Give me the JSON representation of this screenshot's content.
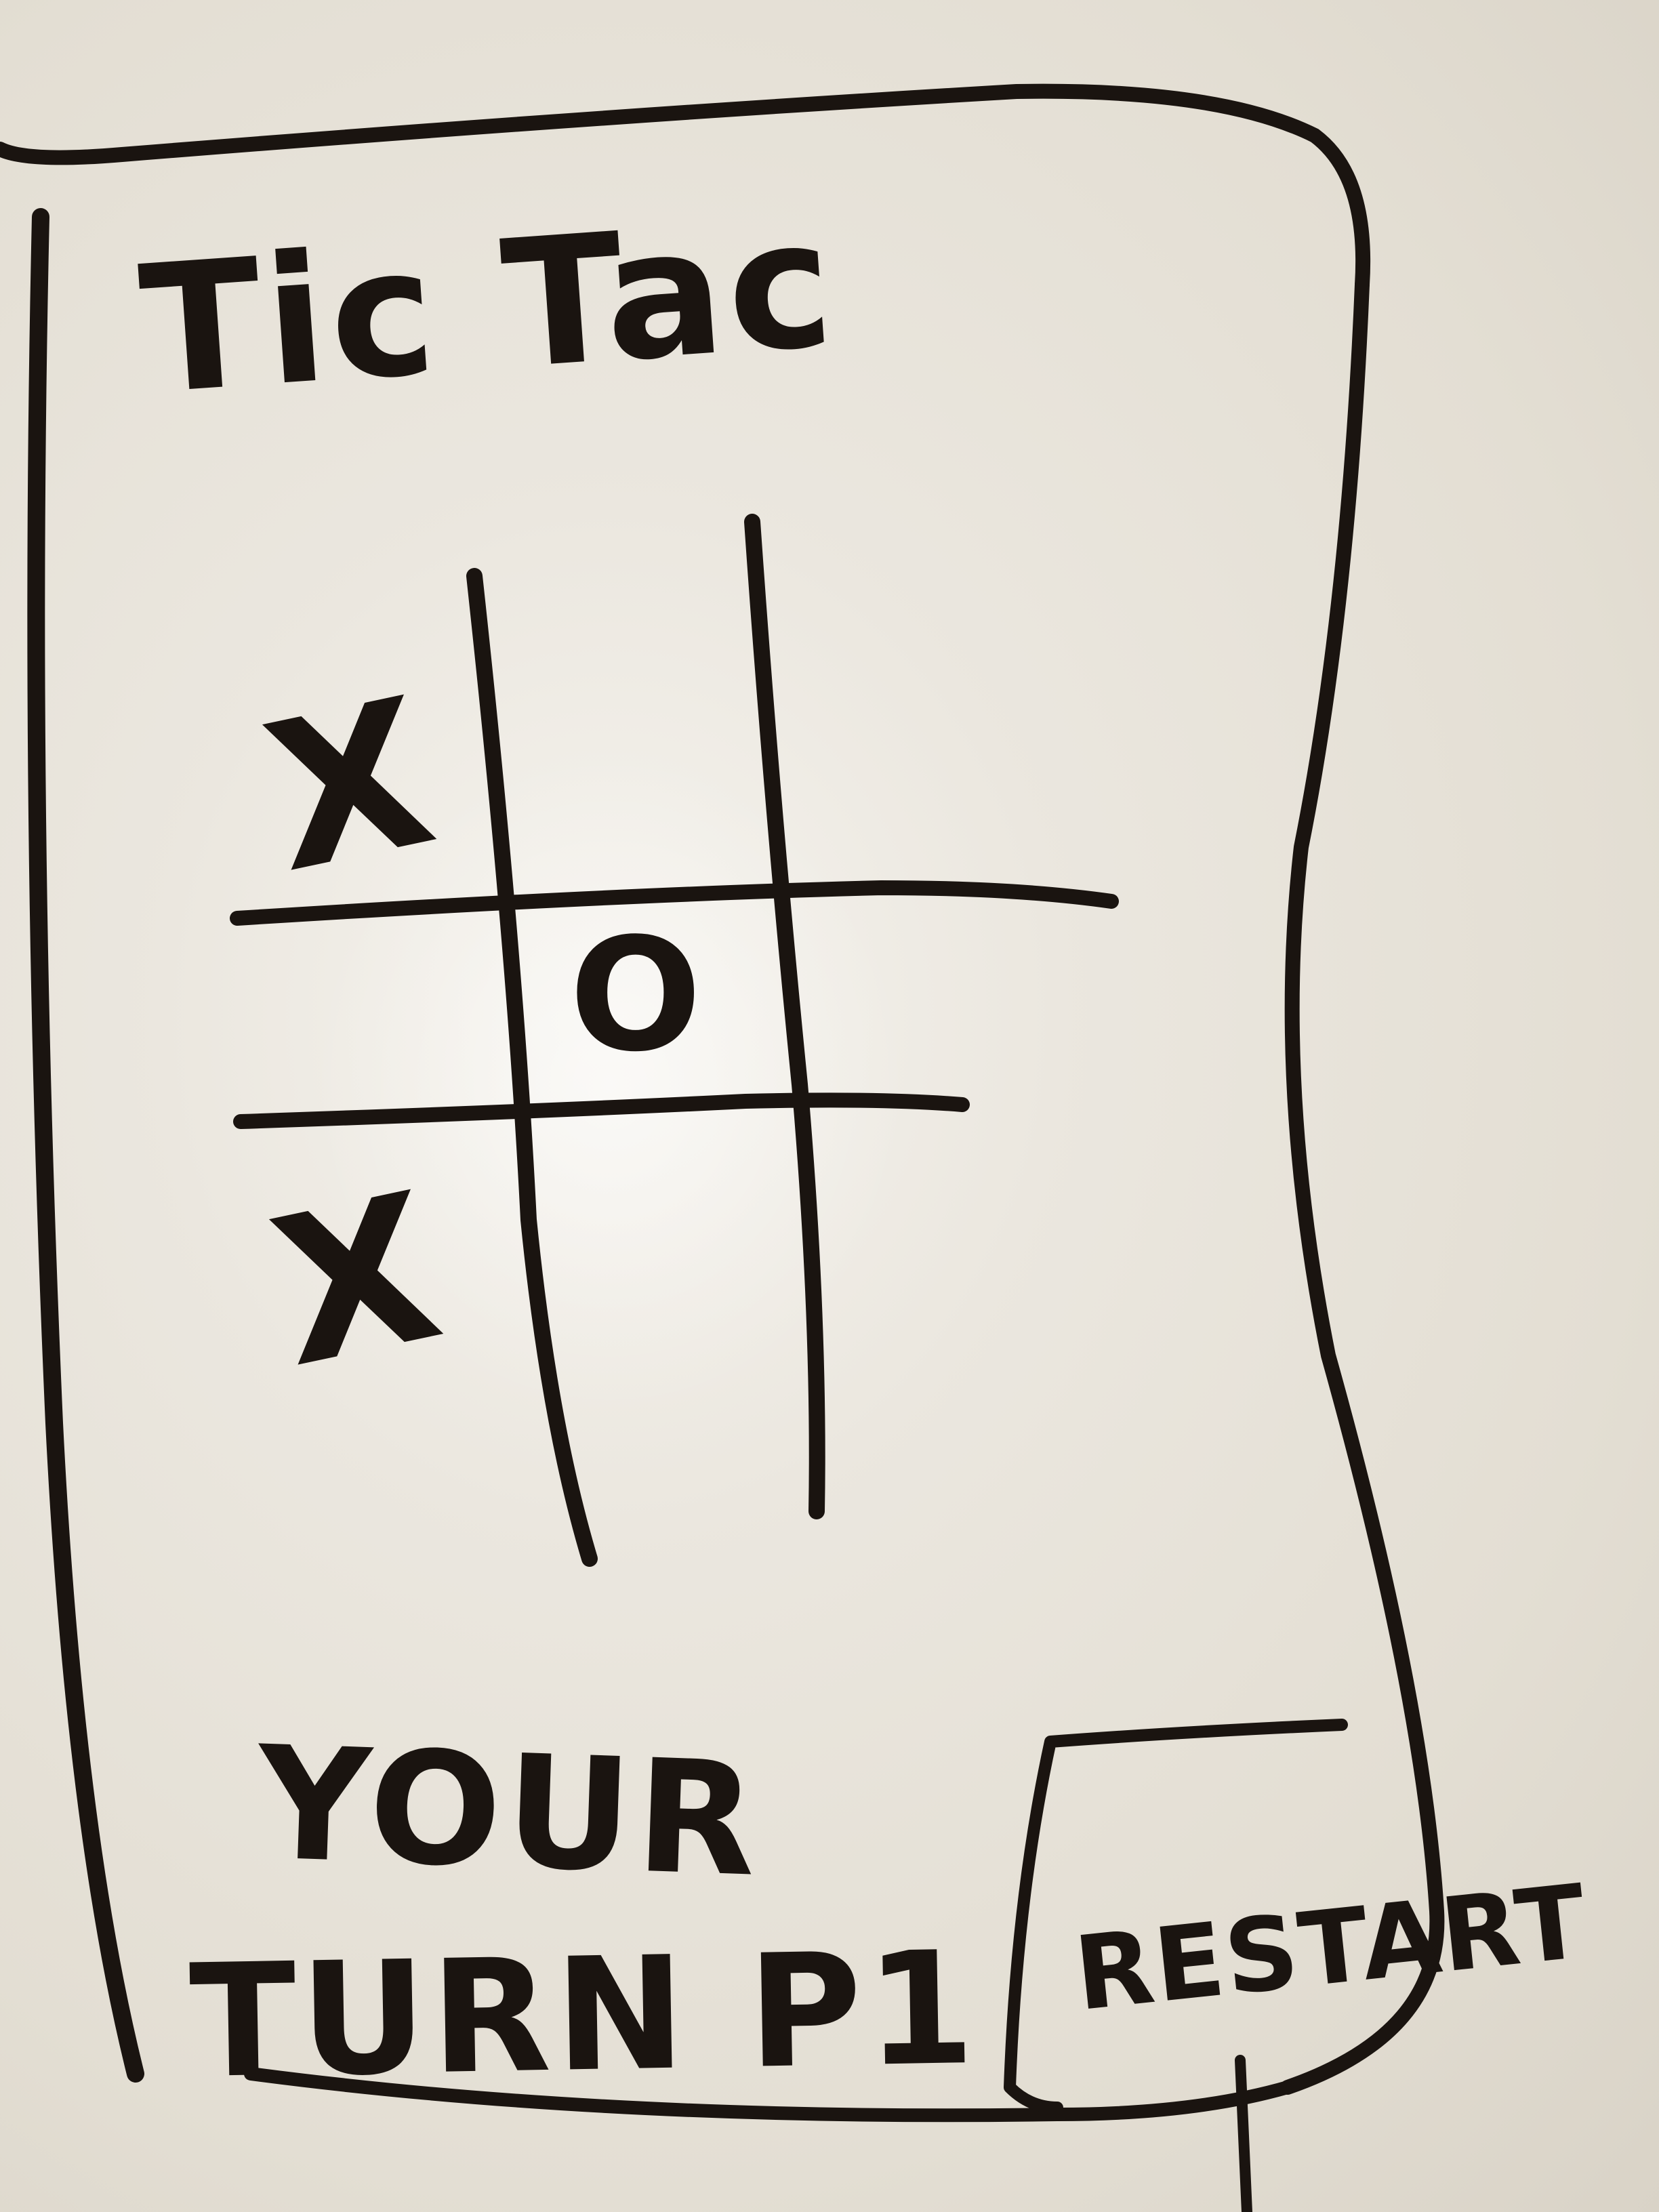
{
  "app": {
    "title": "Tic Tac"
  },
  "board": {
    "cells": [
      {
        "row": 0,
        "col": 0,
        "mark": "X"
      },
      {
        "row": 0,
        "col": 1,
        "mark": ""
      },
      {
        "row": 0,
        "col": 2,
        "mark": ""
      },
      {
        "row": 1,
        "col": 0,
        "mark": ""
      },
      {
        "row": 1,
        "col": 1,
        "mark": "O"
      },
      {
        "row": 1,
        "col": 2,
        "mark": ""
      },
      {
        "row": 2,
        "col": 0,
        "mark": "X"
      },
      {
        "row": 2,
        "col": 1,
        "mark": ""
      },
      {
        "row": 2,
        "col": 2,
        "mark": ""
      }
    ]
  },
  "status": {
    "line1": "YOUR",
    "line2": "TURN P1"
  },
  "controls": {
    "restart_label": "RESTART"
  },
  "colors": {
    "ink": "#1a1410",
    "whiteboard": "#e7e2d8"
  }
}
